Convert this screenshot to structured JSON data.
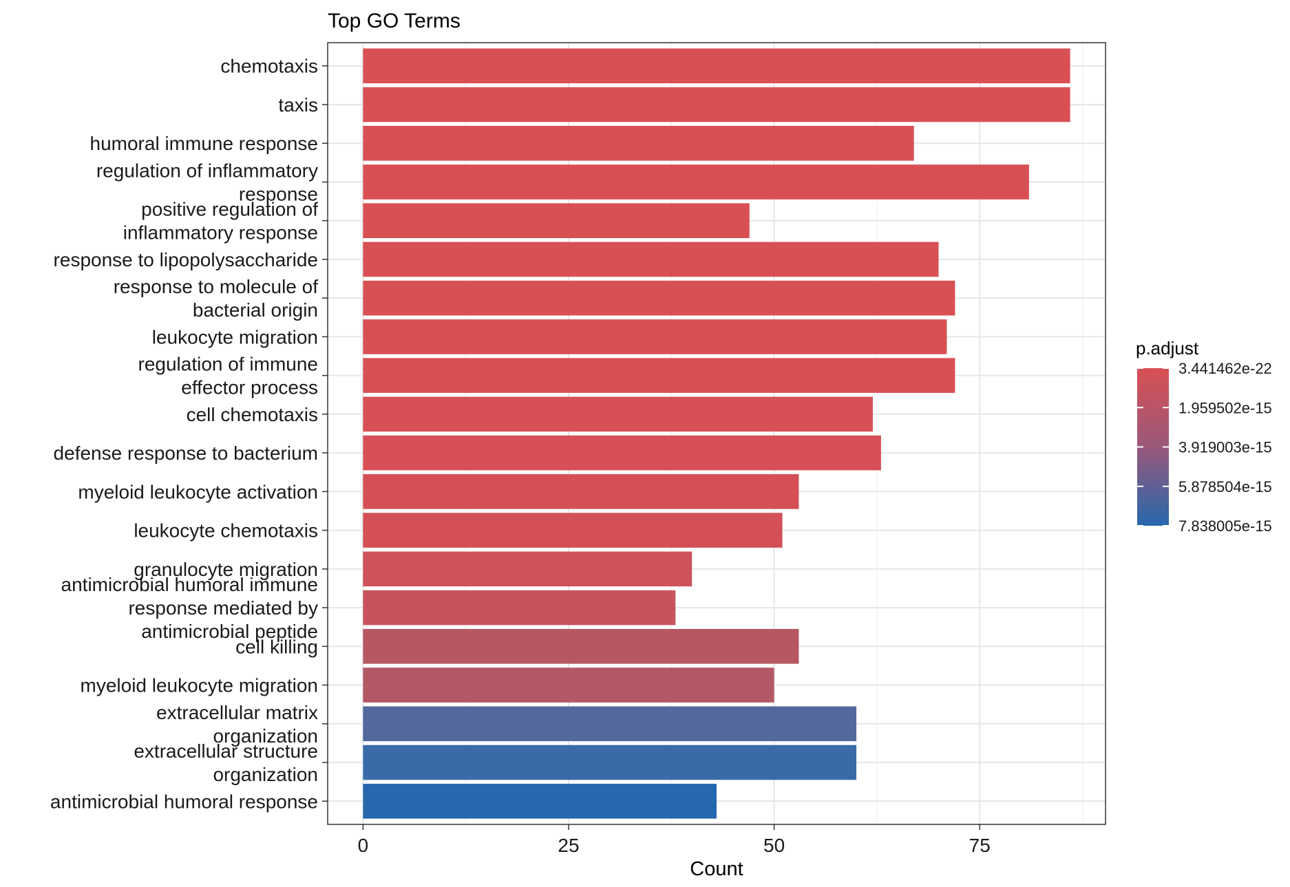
{
  "chart_data": {
    "type": "bar",
    "orientation": "horizontal",
    "title": "Top GO Terms",
    "xlabel": "Count",
    "ylabel": "",
    "xlim": [
      -4.3,
      90.3
    ],
    "xticks": [
      0,
      25,
      50,
      75
    ],
    "grid": true,
    "legend_position": "right",
    "legend": {
      "title": "p.adjust",
      "labels": [
        "3.441462e-22",
        "1.959502e-15",
        "3.919003e-15",
        "5.878504e-15",
        "7.838005e-15"
      ],
      "color_low": "#d95054",
      "color_high": "#2668ad"
    },
    "categories": [
      "chemotaxis",
      "taxis",
      "humoral immune response",
      "regulation of inflammatory\nresponse",
      "positive regulation of\ninflammatory response",
      "response to lipopolysaccharide",
      "response to molecule of\nbacterial origin",
      "leukocyte migration",
      "regulation of immune\neffector process",
      "cell chemotaxis",
      "defense response to bacterium",
      "myeloid leukocyte activation",
      "leukocyte chemotaxis",
      "granulocyte migration",
      "antimicrobial humoral immune\nresponse mediated by\nantimicrobial peptide",
      "cell killing",
      "myeloid leukocyte migration",
      "extracellular matrix\norganization",
      "extracellular structure\norganization",
      "antimicrobial humoral response"
    ],
    "values": [
      86,
      86,
      67,
      81,
      47,
      70,
      72,
      71,
      72,
      62,
      63,
      53,
      51,
      40,
      38,
      53,
      50,
      60,
      60,
      43
    ],
    "colors": [
      "#d95054",
      "#d95054",
      "#d95054",
      "#d95054",
      "#d85054",
      "#d85054",
      "#d85054",
      "#d85054",
      "#d85054",
      "#d75055",
      "#d75055",
      "#d55056",
      "#d45057",
      "#cf5159",
      "#c9535c",
      "#b75764",
      "#b35966",
      "#53699d",
      "#396ba9",
      "#2668ad"
    ]
  }
}
